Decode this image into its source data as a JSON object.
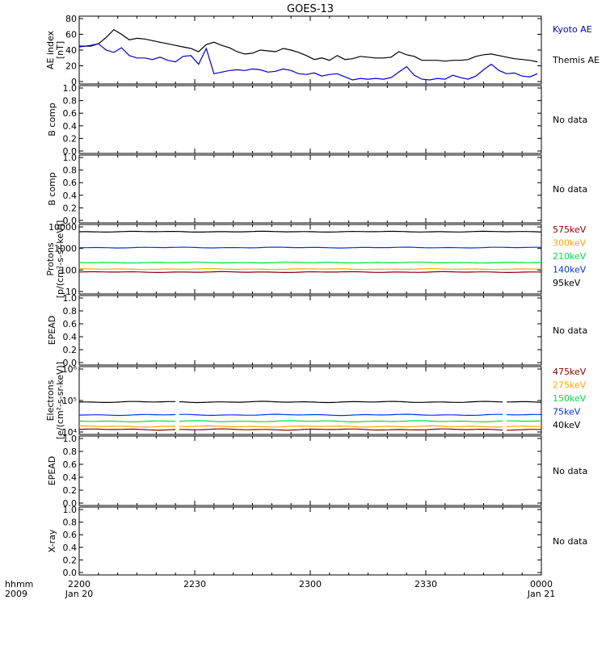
{
  "title": "GOES-13",
  "time_axis": {
    "ticks": [
      "2200",
      "2230",
      "2300",
      "2330",
      "0000"
    ],
    "start_date": "Jan 20",
    "end_date": "Jan 21",
    "row_label_1": "hhmm",
    "row_label_2": "2009"
  },
  "no_data_label": "No data",
  "chart_data": [
    {
      "type": "line",
      "panel": "AE index",
      "ylabel": "AE index",
      "yunit": "[nT]",
      "ylim": [
        0,
        80
      ],
      "yticks": [
        "0",
        "20",
        "40",
        "60",
        "80"
      ],
      "x_minutes": [
        0,
        3,
        5,
        7,
        9,
        11,
        13,
        15,
        17,
        19,
        21,
        23,
        25,
        27,
        29,
        31,
        33,
        35,
        37,
        39,
        41,
        43,
        45,
        47,
        49,
        51,
        53,
        55,
        57,
        59,
        61,
        63,
        65,
        67,
        69,
        71,
        73,
        75,
        77,
        79,
        81,
        83,
        85,
        87,
        89,
        91,
        93,
        95,
        97,
        99,
        101,
        103,
        105,
        107,
        109,
        111,
        113,
        115,
        117,
        119
      ],
      "series": [
        {
          "name": "Themis AE",
          "color": "#000000",
          "values": [
            45,
            45,
            48,
            56,
            66,
            60,
            53,
            55,
            54,
            52,
            50,
            48,
            46,
            44,
            42,
            38,
            47,
            50,
            46,
            43,
            38,
            35,
            36,
            40,
            39,
            38,
            42,
            40,
            37,
            33,
            28,
            30,
            27,
            33,
            28,
            29,
            32,
            31,
            30,
            30,
            31,
            38,
            34,
            32,
            27,
            27,
            27,
            26,
            27,
            27,
            28,
            32,
            34,
            35,
            33,
            31,
            29,
            28,
            27,
            25
          ]
        },
        {
          "name": "Kyoto AE",
          "color": "#0000cc",
          "values": [
            44,
            46,
            48,
            40,
            37,
            43,
            33,
            30,
            30,
            28,
            31,
            27,
            25,
            32,
            33,
            22,
            42,
            10,
            12,
            14,
            15,
            14,
            16,
            15,
            12,
            13,
            16,
            14,
            10,
            9,
            11,
            7,
            9,
            10,
            6,
            2,
            4,
            3,
            4,
            3,
            5,
            12,
            19,
            8,
            3,
            2,
            4,
            3,
            8,
            5,
            3,
            7,
            15,
            22,
            14,
            10,
            11,
            7,
            6,
            10
          ]
        }
      ]
    },
    {
      "type": "line",
      "panel": "B comp (1)",
      "ylabel": "B comp",
      "ylim": [
        0,
        1
      ],
      "yticks": [
        "0.0",
        "0.2",
        "0.4",
        "0.6",
        "0.8",
        "1.0"
      ],
      "series": []
    },
    {
      "type": "line",
      "panel": "B comp (2)",
      "ylabel": "B comp",
      "ylim": [
        0,
        1
      ],
      "yticks": [
        "0.0",
        "0.2",
        "0.4",
        "0.6",
        "0.8",
        "1.0"
      ],
      "series": []
    },
    {
      "type": "line",
      "panel": "Protons",
      "ylabel": "Protons",
      "yunit": "[p/(cm²-s-sr-keV)]",
      "yscale": "log",
      "ylim": [
        10,
        10000
      ],
      "yticks": [
        "10",
        "100",
        "1000",
        "10000"
      ],
      "series": [
        {
          "name": "575keV",
          "color": "#8b0000",
          "level": 80
        },
        {
          "name": "300keV",
          "color": "#ffa500",
          "level": 110
        },
        {
          "name": "210keV",
          "color": "#00dd44",
          "level": 220
        },
        {
          "name": "140keV",
          "color": "#0033ee",
          "level": 1100
        },
        {
          "name": "95keV",
          "color": "#000000",
          "level": 6000
        }
      ]
    },
    {
      "type": "line",
      "panel": "EPEAD (1)",
      "ylabel": "EPEAD",
      "ylim": [
        0,
        1
      ],
      "yticks": [
        "0.0",
        "0.2",
        "0.4",
        "0.6",
        "0.8",
        "1.0"
      ],
      "series": []
    },
    {
      "type": "line",
      "panel": "Electrons",
      "ylabel": "Electrons",
      "yunit": "[e/(cm²-s-sr-keV)]",
      "yscale": "log",
      "ylim": [
        10000,
        1000000
      ],
      "yticks": [
        "10⁴",
        "10⁵",
        "10⁶"
      ],
      "series": [
        {
          "name": "475keV",
          "color": "#8b0000",
          "level": 12000
        },
        {
          "name": "275keV",
          "color": "#ffa500",
          "level": 15000
        },
        {
          "name": "150keV",
          "color": "#00dd44",
          "level": 22000
        },
        {
          "name": "75keV",
          "color": "#0033ee",
          "level": 35000
        },
        {
          "name": "40keV",
          "color": "#000000",
          "level": 90000
        }
      ]
    },
    {
      "type": "line",
      "panel": "EPEAD (2)",
      "ylabel": "EPEAD",
      "ylim": [
        0,
        1
      ],
      "yticks": [
        "0.0",
        "0.2",
        "0.4",
        "0.6",
        "0.8",
        "1.0"
      ],
      "series": []
    },
    {
      "type": "line",
      "panel": "X-ray",
      "ylabel": "X-ray",
      "ylim": [
        0,
        1
      ],
      "yticks": [
        "0.0",
        "0.2",
        "0.4",
        "0.6",
        "0.8",
        "1.0"
      ],
      "series": []
    }
  ]
}
